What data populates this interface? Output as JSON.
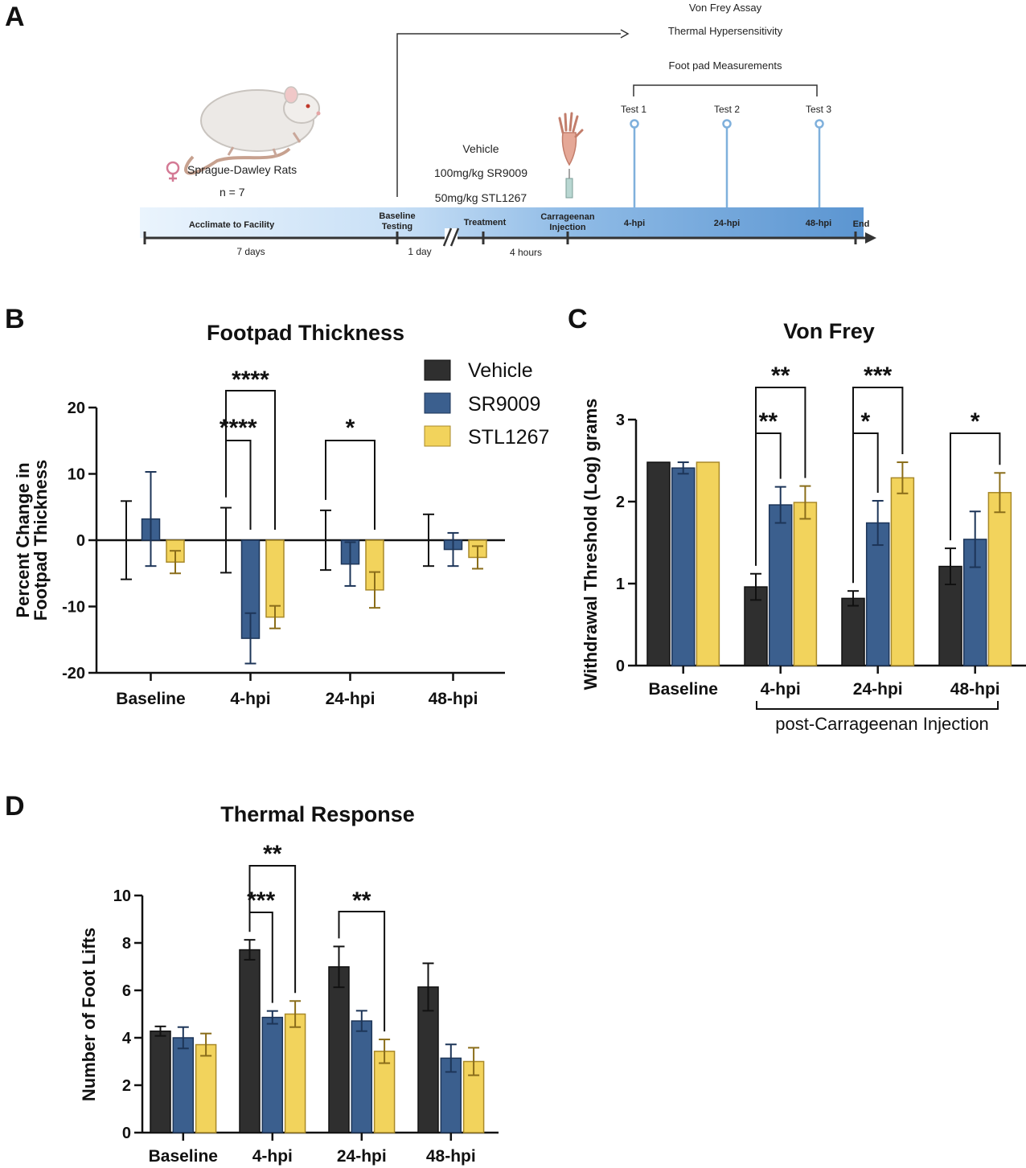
{
  "panel_letters": {
    "a": "A",
    "b": "B",
    "c": "C",
    "d": "D"
  },
  "colors": {
    "vehicle": "#2f2f2f",
    "sr9009": "#3b5f8e",
    "stl1267": "#f2d35c",
    "stl1267_edge": "#a8892a",
    "timeline": "#5b95d1",
    "test_pin": "#7fb0dc"
  },
  "timeline": {
    "species": "Sprague-Dawley Rats",
    "n": "n = 7",
    "treatments": [
      "Vehicle",
      "100mg/kg SR9009",
      "50mg/kg STL1267"
    ],
    "assays": [
      "Von Frey Assay",
      "Thermal Hypersensitivity",
      "Foot pad Measurements"
    ],
    "tests": [
      "Test 1",
      "Test 2",
      "Test 3"
    ],
    "phases": {
      "acclimate": "Acclimate to Facility",
      "baseline": "Baseline Testing",
      "treatment": "Treatment",
      "carrageenan": "Carrageenan Injection",
      "t4": "4-hpi",
      "t24": "24-hpi",
      "t48": "48-hpi",
      "end": "End"
    },
    "durations": {
      "acclimate": "7 days",
      "baseline": "1 day",
      "treatment": "4 hours"
    }
  },
  "chart_data": [
    {
      "id": "B",
      "type": "bar",
      "title": "Footpad Thickness",
      "ylabel": "Percent Change in Footpad Thickness",
      "ylabel_lines": [
        "Percent Change in",
        "Footpad Thickness"
      ],
      "xlabel": "",
      "categories": [
        "Baseline",
        "4-hpi",
        "24-hpi",
        "48-hpi"
      ],
      "ylim": [
        -20,
        20
      ],
      "yticks": [
        -20,
        -10,
        0,
        10,
        20
      ],
      "legend_position": "top-right",
      "series": [
        {
          "name": "Vehicle",
          "values": [
            0,
            0,
            0,
            0
          ],
          "errors": [
            5.9,
            4.9,
            4.5,
            3.9
          ]
        },
        {
          "name": "SR9009",
          "values": [
            3.2,
            -14.8,
            -3.6,
            -1.4
          ],
          "errors": [
            7.1,
            3.8,
            3.3,
            2.5
          ]
        },
        {
          "name": "STL1267",
          "values": [
            -3.3,
            -11.6,
            -7.5,
            -2.6
          ],
          "errors": [
            1.7,
            1.7,
            2.7,
            1.7
          ]
        }
      ],
      "significance": [
        {
          "label": "****",
          "category": 1,
          "from_series": 0,
          "to_series": 1
        },
        {
          "label": "****",
          "category": 1,
          "from_series": 0,
          "to_series": 2
        },
        {
          "label": "*",
          "category": 2,
          "from_series": 0,
          "to_series": 2
        }
      ]
    },
    {
      "id": "C",
      "type": "bar",
      "title": "Von Frey",
      "ylabel": "Withdrawal Threshold (Log) grams",
      "xlabel": "",
      "categories": [
        "Baseline",
        "4-hpi",
        "24-hpi",
        "48-hpi"
      ],
      "group_note": "post-Carrageenan Injection",
      "ylim": [
        0,
        3
      ],
      "yticks": [
        0,
        1,
        2,
        3
      ],
      "series": [
        {
          "name": "Vehicle",
          "values": [
            2.48,
            0.96,
            0.82,
            1.21
          ],
          "errors": [
            0,
            0.16,
            0.09,
            0.22
          ]
        },
        {
          "name": "SR9009",
          "values": [
            2.41,
            1.96,
            1.74,
            1.54
          ],
          "errors": [
            0.07,
            0.22,
            0.27,
            0.34
          ]
        },
        {
          "name": "STL1267",
          "values": [
            2.48,
            1.99,
            2.29,
            2.11
          ],
          "errors": [
            0,
            0.2,
            0.19,
            0.24
          ]
        }
      ],
      "significance": [
        {
          "label": "**",
          "category": 1,
          "from_series": 0,
          "to_series": 1
        },
        {
          "label": "**",
          "category": 1,
          "from_series": 0,
          "to_series": 2
        },
        {
          "label": "*",
          "category": 2,
          "from_series": 0,
          "to_series": 1
        },
        {
          "label": "***",
          "category": 2,
          "from_series": 0,
          "to_series": 2
        },
        {
          "label": "*",
          "category": 3,
          "from_series": 0,
          "to_series": 2
        }
      ]
    },
    {
      "id": "D",
      "type": "bar",
      "title": "Thermal Response",
      "ylabel": "Number of Foot Lifts",
      "xlabel": "",
      "categories": [
        "Baseline",
        "4-hpi",
        "24-hpi",
        "48-hpi"
      ],
      "ylim": [
        0,
        10
      ],
      "yticks": [
        0,
        2,
        4,
        6,
        8,
        10
      ],
      "series": [
        {
          "name": "Vehicle",
          "values": [
            4.28,
            7.71,
            6.99,
            6.14
          ],
          "errors": [
            0.2,
            0.42,
            0.86,
            1.0
          ]
        },
        {
          "name": "SR9009",
          "values": [
            4.0,
            4.86,
            4.71,
            3.14
          ],
          "errors": [
            0.45,
            0.27,
            0.43,
            0.58
          ]
        },
        {
          "name": "STL1267",
          "values": [
            3.71,
            5.0,
            3.43,
            3.0
          ],
          "errors": [
            0.47,
            0.55,
            0.5,
            0.58
          ]
        }
      ],
      "significance": [
        {
          "label": "***",
          "category": 1,
          "from_series": 0,
          "to_series": 1
        },
        {
          "label": "**",
          "category": 1,
          "from_series": 0,
          "to_series": 2
        },
        {
          "label": "**",
          "category": 2,
          "from_series": 0,
          "to_series": 2
        }
      ]
    }
  ]
}
